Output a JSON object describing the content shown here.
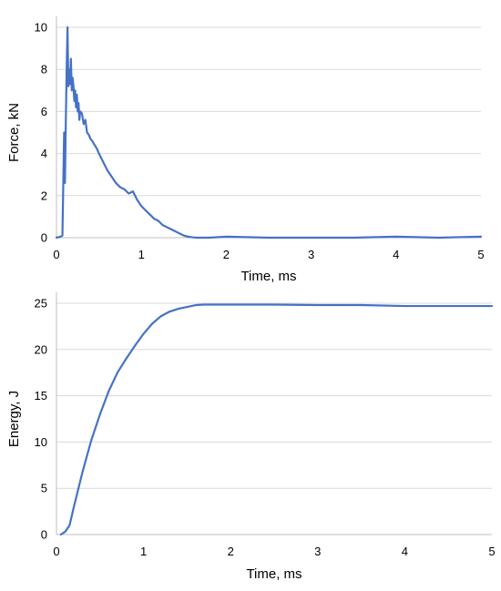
{
  "chart_data": [
    {
      "type": "line",
      "title": "",
      "xlabel": "Time, ms",
      "ylabel": "Force, kN",
      "xlim": [
        0,
        5
      ],
      "ylim": [
        0,
        10
      ],
      "x_ticks": [
        0,
        1,
        2,
        3,
        4,
        5
      ],
      "y_ticks": [
        0,
        2,
        4,
        6,
        8,
        10
      ],
      "grid": "horizontal",
      "legend": "none",
      "color": "#4472C4",
      "series": [
        {
          "x": [
            0,
            0.05,
            0.07,
            0.08,
            0.09,
            0.1,
            0.11,
            0.12,
            0.13,
            0.14,
            0.15,
            0.16,
            0.17,
            0.18,
            0.19,
            0.2,
            0.21,
            0.22,
            0.23,
            0.24,
            0.25,
            0.26,
            0.27,
            0.28,
            0.3,
            0.32,
            0.34,
            0.36,
            0.38,
            0.4,
            0.42,
            0.45,
            0.48,
            0.5,
            0.55,
            0.6,
            0.65,
            0.7,
            0.75,
            0.8,
            0.85,
            0.9,
            0.95,
            1.0,
            1.05,
            1.1,
            1.15,
            1.2,
            1.25,
            1.3,
            1.35,
            1.4,
            1.45,
            1.5,
            1.55,
            1.6,
            1.65,
            1.7,
            1.75,
            1.8,
            2.0,
            2.5,
            3.0,
            3.5,
            4.0,
            4.5,
            5.0
          ],
          "y": [
            0,
            0.05,
            0.1,
            2.5,
            5.0,
            2.6,
            5.5,
            8.0,
            10.0,
            7.2,
            8.0,
            7.3,
            8.5,
            7.0,
            7.6,
            7.2,
            6.5,
            7.0,
            6.2,
            6.8,
            6.0,
            6.4,
            5.6,
            6.0,
            5.9,
            5.4,
            5.6,
            5.0,
            4.9,
            4.7,
            4.6,
            4.4,
            4.2,
            4.0,
            3.6,
            3.2,
            2.9,
            2.6,
            2.4,
            2.3,
            2.1,
            2.2,
            1.8,
            1.5,
            1.3,
            1.1,
            0.9,
            0.8,
            0.6,
            0.5,
            0.4,
            0.3,
            0.2,
            0.1,
            0.05,
            0.02,
            0.0,
            0.0,
            0.0,
            0.0,
            0.05,
            0.0,
            0.0,
            0.0,
            0.05,
            0.0,
            0.05
          ]
        }
      ]
    },
    {
      "type": "line",
      "title": "",
      "xlabel": "Time, ms",
      "ylabel": "Energy, J",
      "xlim": [
        0,
        5
      ],
      "ylim": [
        0,
        25
      ],
      "x_ticks": [
        0,
        1,
        2,
        3,
        4,
        5
      ],
      "y_ticks": [
        0,
        5,
        10,
        15,
        20,
        25
      ],
      "grid": "horizontal",
      "legend": "none",
      "color": "#4472C4",
      "series": [
        {
          "x": [
            0.05,
            0.1,
            0.15,
            0.2,
            0.3,
            0.4,
            0.5,
            0.6,
            0.7,
            0.8,
            0.9,
            1.0,
            1.1,
            1.2,
            1.3,
            1.4,
            1.5,
            1.6,
            1.7,
            1.8,
            2.0,
            2.5,
            3.0,
            3.5,
            4.0,
            4.5,
            5.0
          ],
          "y": [
            0.0,
            0.3,
            1.0,
            3.0,
            6.8,
            10.2,
            13.0,
            15.5,
            17.5,
            19.0,
            20.4,
            21.7,
            22.8,
            23.6,
            24.1,
            24.4,
            24.6,
            24.8,
            24.85,
            24.85,
            24.85,
            24.85,
            24.8,
            24.8,
            24.7,
            24.7,
            24.7
          ]
        }
      ]
    }
  ]
}
